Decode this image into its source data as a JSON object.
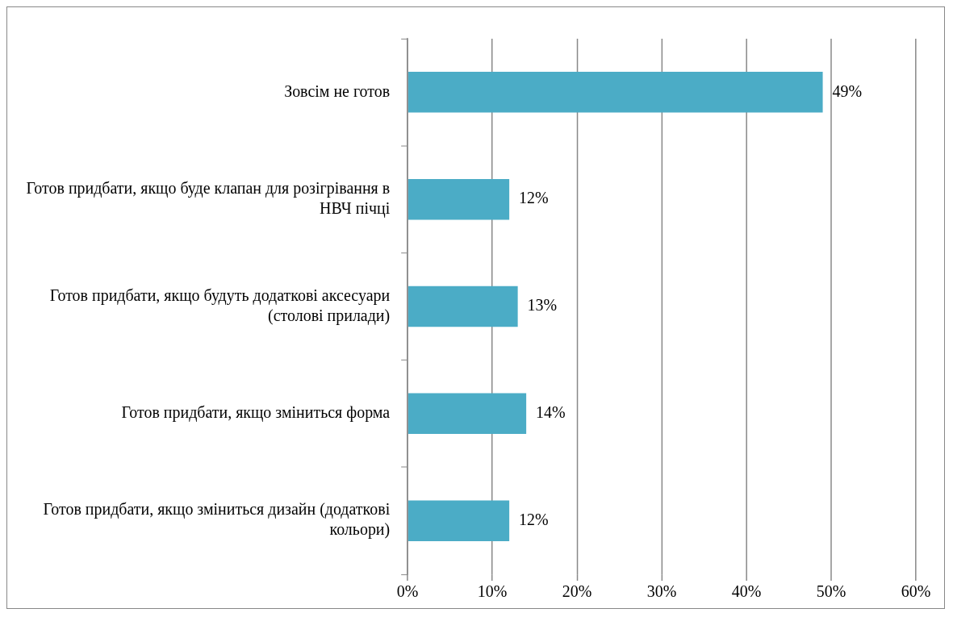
{
  "chart_data": {
    "type": "bar",
    "orientation": "horizontal",
    "categories": [
      "Зовсім не готов",
      "Готов придбати, якщо буде клапан для розігрівання в НВЧ пічці",
      "Готов придбати, якщо будуть додаткові аксесуари (столові прилади)",
      "Готов придбати, якщо зміниться форма",
      "Готов придбати, якщо зміниться дизайн (додаткові кольори)"
    ],
    "values": [
      49,
      12,
      13,
      14,
      12
    ],
    "value_labels": [
      "49%",
      "12%",
      "13%",
      "14%",
      "12%"
    ],
    "color": "#4bacc6",
    "xlim": [
      0,
      60
    ],
    "xticks": [
      {
        "value": 0,
        "label": "0%"
      },
      {
        "value": 10,
        "label": "10%"
      },
      {
        "value": 20,
        "label": "20%"
      },
      {
        "value": 30,
        "label": "30%"
      },
      {
        "value": 40,
        "label": "40%"
      },
      {
        "value": 50,
        "label": "50%"
      },
      {
        "value": 60,
        "label": "60%"
      }
    ],
    "grid": "x"
  }
}
